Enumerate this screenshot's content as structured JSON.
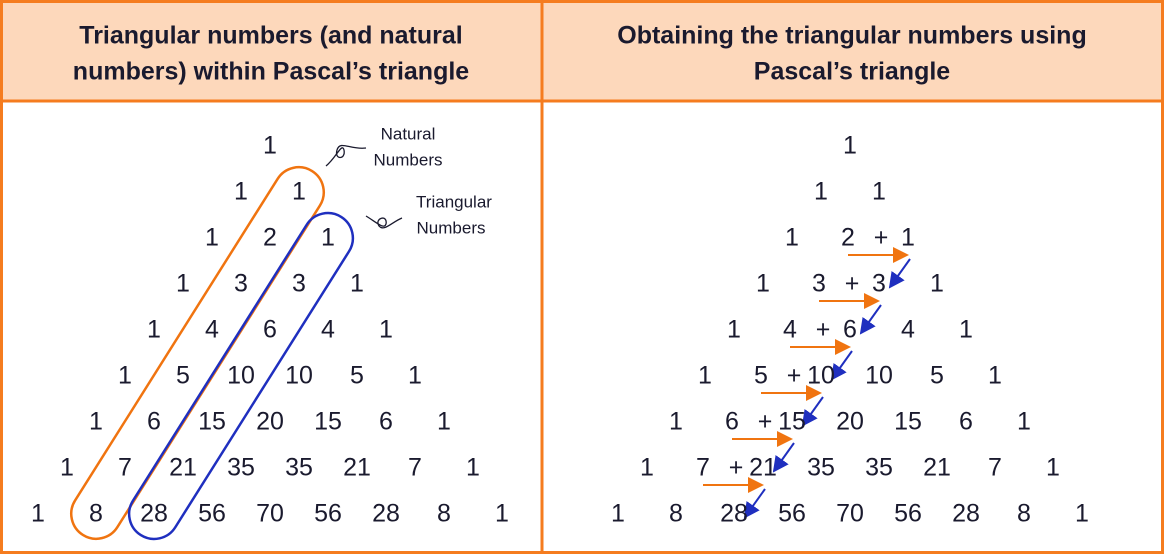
{
  "left": {
    "header": [
      "Triangular numbers (and natural",
      "numbers) within Pascal’s triangle"
    ],
    "rows": [
      [
        1
      ],
      [
        1,
        1
      ],
      [
        1,
        2,
        1
      ],
      [
        1,
        3,
        3,
        1
      ],
      [
        1,
        4,
        6,
        4,
        1
      ],
      [
        1,
        5,
        10,
        10,
        5,
        1
      ],
      [
        1,
        6,
        15,
        20,
        15,
        6,
        1
      ],
      [
        1,
        7,
        21,
        35,
        35,
        21,
        7,
        1
      ],
      [
        1,
        8,
        28,
        56,
        70,
        56,
        28,
        8,
        1
      ]
    ],
    "labels": {
      "natural": [
        "Natural",
        "Numbers"
      ],
      "triangular": [
        "Triangular",
        "Numbers"
      ]
    }
  },
  "right": {
    "header": [
      "Obtaining the triangular numbers using",
      "Pascal’s triangle"
    ],
    "rows": [
      [
        1
      ],
      [
        1,
        1
      ],
      [
        1,
        2,
        1
      ],
      [
        1,
        3,
        3,
        1
      ],
      [
        1,
        4,
        6,
        4,
        1
      ],
      [
        1,
        5,
        10,
        10,
        5,
        1
      ],
      [
        1,
        6,
        15,
        20,
        15,
        6,
        1
      ],
      [
        1,
        7,
        21,
        35,
        35,
        21,
        7,
        1
      ],
      [
        1,
        8,
        28,
        56,
        70,
        56,
        28,
        8,
        1
      ]
    ],
    "operator": "+"
  }
}
